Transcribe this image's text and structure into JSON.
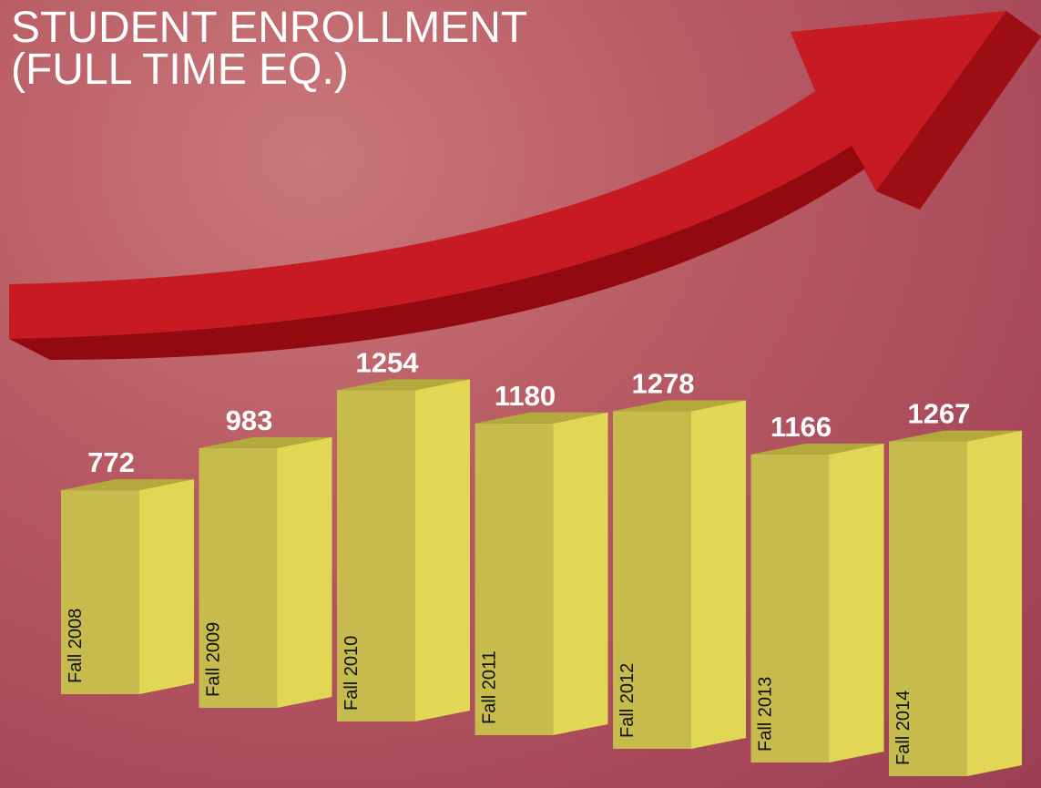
{
  "chart_data": {
    "type": "bar3d",
    "title": "STUDENT ENROLLMENT (FULL TIME EQ.)",
    "categories": [
      "Fall 2008",
      "Fall 2009",
      "Fall 2010",
      "Fall 2011",
      "Fall 2012",
      "Fall 2013",
      "Fall 2014"
    ],
    "values": [
      772,
      983,
      1254,
      1180,
      1278,
      1166,
      1267
    ],
    "color": "#c6bb4c"
  }
}
